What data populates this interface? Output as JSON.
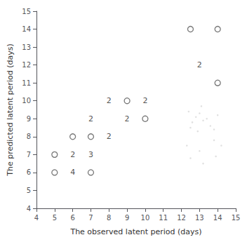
{
  "chart_data": {
    "type": "scatter",
    "xlabel": "The observed latent period (days)",
    "ylabel": "The predicted latent period (days)",
    "xlim": [
      4,
      15
    ],
    "ylim": [
      4,
      15
    ],
    "xticks": [
      4,
      5,
      6,
      7,
      8,
      9,
      10,
      11,
      12,
      13,
      14,
      15
    ],
    "yticks": [
      4,
      5,
      6,
      7,
      8,
      9,
      10,
      11,
      12,
      13,
      14,
      15
    ],
    "grid": false,
    "series": [
      {
        "marker": "dot",
        "color": "#d8d8d8",
        "values": [
          [
            12.4,
            9.4
          ],
          [
            12.6,
            8.8
          ],
          [
            12.8,
            9.1
          ],
          [
            12.5,
            8.5
          ],
          [
            13.0,
            9.3
          ],
          [
            13.2,
            8.9
          ],
          [
            13.1,
            9.7
          ],
          [
            12.9,
            8.3
          ],
          [
            13.4,
            9.0
          ],
          [
            13.6,
            8.6
          ],
          [
            14.0,
            9.2
          ],
          [
            13.8,
            8.4
          ],
          [
            12.3,
            7.5
          ],
          [
            13.0,
            7.2
          ],
          [
            13.8,
            7.8
          ],
          [
            14.2,
            7.5
          ],
          [
            12.5,
            6.8
          ],
          [
            13.2,
            6.5
          ],
          [
            13.9,
            6.9
          ]
        ]
      },
      {
        "marker": "open_circle",
        "color": "#555555",
        "values": [
          [
            5,
            7
          ],
          [
            5,
            6
          ],
          [
            6,
            8
          ],
          [
            7,
            8
          ],
          [
            7,
            6
          ],
          [
            9,
            10
          ],
          [
            10,
            9
          ],
          [
            12.5,
            14
          ],
          [
            14,
            14
          ],
          [
            14,
            11
          ]
        ]
      }
    ],
    "annotations": [
      {
        "x": 6,
        "y": 7,
        "text": "2"
      },
      {
        "x": 6,
        "y": 6,
        "text": "4"
      },
      {
        "x": 7,
        "y": 7,
        "text": "3"
      },
      {
        "x": 7,
        "y": 9,
        "text": "2"
      },
      {
        "x": 8,
        "y": 10,
        "text": "2"
      },
      {
        "x": 8,
        "y": 8,
        "text": "2"
      },
      {
        "x": 9,
        "y": 9,
        "text": "2"
      },
      {
        "x": 10,
        "y": 10,
        "text": "2"
      },
      {
        "x": 13,
        "y": 12,
        "text": "2"
      }
    ]
  }
}
